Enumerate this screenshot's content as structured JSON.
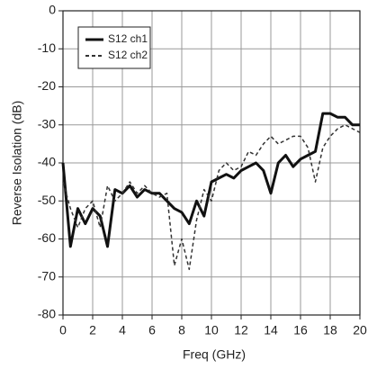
{
  "chart_data": {
    "type": "line",
    "xlabel": "Freq (GHz)",
    "ylabel": "Reverse Isolation (dB)",
    "x": [
      0,
      0.5,
      1,
      1.5,
      2,
      2.5,
      3,
      3.5,
      4,
      4.5,
      5,
      5.5,
      6,
      6.5,
      7,
      7.5,
      8,
      8.5,
      9,
      9.5,
      10,
      10.5,
      11,
      11.5,
      12,
      12.5,
      13,
      13.5,
      14,
      14.5,
      15,
      15.5,
      16,
      16.5,
      17,
      17.5,
      18,
      18.5,
      19,
      19.5,
      20
    ],
    "series": [
      {
        "name": "S12 ch1",
        "color": "#111111",
        "line_style": "solid",
        "values": [
          -40,
          -62,
          -52,
          -56,
          -52,
          -54,
          -62,
          -47,
          -48,
          -46,
          -49,
          -47,
          -48,
          -48,
          -50,
          -52,
          -53,
          -56,
          -50,
          -54,
          -45,
          -44,
          -43,
          -44,
          -42,
          -41,
          -40,
          -42,
          -48,
          -40,
          -38,
          -41,
          -39,
          -38,
          -37,
          -27,
          -27,
          -28,
          -28,
          -30,
          -30
        ]
      },
      {
        "name": "S12 ch2",
        "color": "#333333",
        "line_style": "dashed",
        "values": [
          -45,
          -52,
          -57,
          -52,
          -50,
          -57,
          -46,
          -50,
          -48,
          -45,
          -48,
          -46,
          -48,
          -49,
          -48,
          -67,
          -60,
          -68,
          -55,
          -47,
          -50,
          -42,
          -40,
          -42,
          -41,
          -37,
          -38,
          -35,
          -33,
          -35,
          -34,
          -33,
          -33,
          -36,
          -45,
          -36,
          -33,
          -31,
          -30,
          -31,
          -32
        ]
      }
    ],
    "xlim": [
      0,
      20
    ],
    "xticks": [
      0,
      2,
      4,
      6,
      8,
      10,
      12,
      14,
      16,
      18,
      20
    ],
    "ylim": [
      -80,
      0
    ],
    "yticks": [
      0,
      -10,
      -20,
      -30,
      -40,
      -50,
      -60,
      -70,
      -80
    ],
    "grid": true,
    "legend": "upper-left"
  }
}
